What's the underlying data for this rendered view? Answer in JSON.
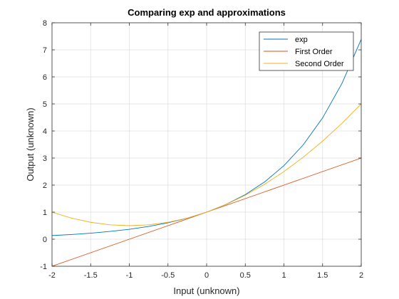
{
  "chart_data": {
    "type": "line",
    "title": "Comparing exp and approximations",
    "xlabel": "Input (unknown)",
    "ylabel": "Output (unknown)",
    "xlim": [
      -2,
      2
    ],
    "ylim": [
      -1,
      8
    ],
    "xticks": [
      -2,
      -1.5,
      -1,
      -0.5,
      0,
      0.5,
      1,
      1.5,
      2
    ],
    "xtick_labels": [
      "-2",
      "-1.5",
      "-1",
      "-0.5",
      "0",
      "0.5",
      "1",
      "1.5",
      "2"
    ],
    "yticks": [
      -1,
      0,
      1,
      2,
      3,
      4,
      5,
      6,
      7,
      8
    ],
    "ytick_labels": [
      "-1",
      "0",
      "1",
      "2",
      "3",
      "4",
      "5",
      "6",
      "7",
      "8"
    ],
    "grid": true,
    "legend_position": "top-right",
    "x": [
      -2,
      -1.75,
      -1.5,
      -1.25,
      -1,
      -0.75,
      -0.5,
      -0.25,
      0,
      0.25,
      0.5,
      0.75,
      1,
      1.25,
      1.5,
      1.75,
      2
    ],
    "series": [
      {
        "name": "exp",
        "color": "#0072BD",
        "values": [
          0.135,
          0.174,
          0.223,
          0.287,
          0.368,
          0.472,
          0.607,
          0.779,
          1,
          1.284,
          1.649,
          2.117,
          2.718,
          3.49,
          4.482,
          5.755,
          7.389
        ]
      },
      {
        "name": "First Order",
        "color": "#D95319",
        "values": [
          -1,
          -0.75,
          -0.5,
          -0.25,
          0,
          0.25,
          0.5,
          0.75,
          1,
          1.25,
          1.5,
          1.75,
          2,
          2.25,
          2.5,
          2.75,
          3
        ]
      },
      {
        "name": "Second Order",
        "color": "#EDB120",
        "values": [
          1,
          0.781,
          0.625,
          0.531,
          0.5,
          0.531,
          0.625,
          0.781,
          1,
          1.281,
          1.625,
          2.031,
          2.5,
          3.031,
          3.625,
          4.281,
          5
        ]
      }
    ]
  }
}
